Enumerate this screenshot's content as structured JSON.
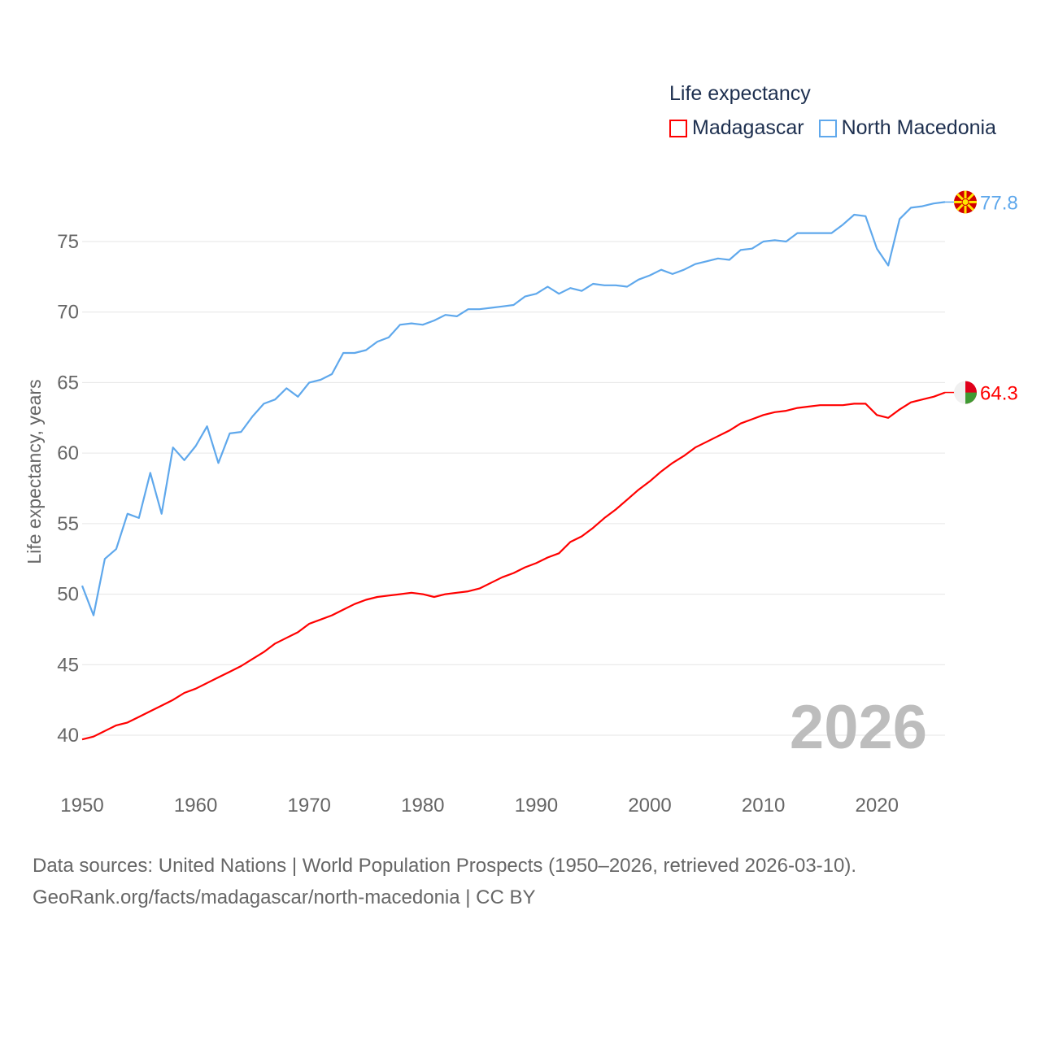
{
  "chart_data": {
    "type": "line",
    "title": "",
    "xlabel": "",
    "ylabel": "Life expectancy, years",
    "xlim": [
      1950,
      2026
    ],
    "ylim": [
      38.5,
      79
    ],
    "x_ticks": [
      "1950",
      "1960",
      "1970",
      "1980",
      "1990",
      "2000",
      "2010",
      "2020"
    ],
    "y_ticks": [
      "40",
      "45",
      "50",
      "55",
      "60",
      "65",
      "70",
      "75"
    ],
    "grid": true,
    "legend_title": "Life expectancy",
    "legend_position": "top-right",
    "year_label": "2026",
    "x": [
      1950,
      1951,
      1952,
      1953,
      1954,
      1955,
      1956,
      1957,
      1958,
      1959,
      1960,
      1961,
      1962,
      1963,
      1964,
      1965,
      1966,
      1967,
      1968,
      1969,
      1970,
      1971,
      1972,
      1973,
      1974,
      1975,
      1976,
      1977,
      1978,
      1979,
      1980,
      1981,
      1982,
      1983,
      1984,
      1985,
      1986,
      1987,
      1988,
      1989,
      1990,
      1991,
      1992,
      1993,
      1994,
      1995,
      1996,
      1997,
      1998,
      1999,
      2000,
      2001,
      2002,
      2003,
      2004,
      2005,
      2006,
      2007,
      2008,
      2009,
      2010,
      2011,
      2012,
      2013,
      2014,
      2015,
      2016,
      2017,
      2018,
      2019,
      2020,
      2021,
      2022,
      2023,
      2024,
      2025,
      2026
    ],
    "series": [
      {
        "name": "Madagascar",
        "color": "#ff0000",
        "end_label": "64.3",
        "values": [
          39.7,
          39.9,
          40.3,
          40.7,
          40.9,
          41.3,
          41.7,
          42.1,
          42.5,
          43.0,
          43.3,
          43.7,
          44.1,
          44.5,
          44.9,
          45.4,
          45.9,
          46.5,
          46.9,
          47.3,
          47.9,
          48.2,
          48.5,
          48.9,
          49.3,
          49.6,
          49.8,
          49.9,
          50.0,
          50.1,
          50.0,
          49.8,
          50.0,
          50.1,
          50.2,
          50.4,
          50.8,
          51.2,
          51.5,
          51.9,
          52.2,
          52.6,
          52.9,
          53.7,
          54.1,
          54.7,
          55.4,
          56.0,
          56.7,
          57.4,
          58.0,
          58.7,
          59.3,
          59.8,
          60.4,
          60.8,
          61.2,
          61.6,
          62.1,
          62.4,
          62.7,
          62.9,
          63.0,
          63.2,
          63.3,
          63.4,
          63.4,
          63.4,
          63.5,
          63.5,
          62.7,
          62.5,
          63.1,
          63.6,
          63.8,
          64.0,
          64.3
        ]
      },
      {
        "name": "North Macedonia",
        "color": "#5fa8ec",
        "end_label": "77.8",
        "values": [
          50.6,
          48.5,
          52.5,
          53.2,
          55.7,
          55.4,
          58.6,
          55.7,
          60.4,
          59.5,
          60.5,
          61.9,
          59.3,
          61.4,
          61.5,
          62.6,
          63.5,
          63.8,
          64.6,
          64.0,
          65.0,
          65.2,
          65.6,
          67.1,
          67.1,
          67.3,
          67.9,
          68.2,
          69.1,
          69.2,
          69.1,
          69.4,
          69.8,
          69.7,
          70.2,
          70.2,
          70.3,
          70.4,
          70.5,
          71.1,
          71.3,
          71.8,
          71.3,
          71.7,
          71.5,
          72.0,
          71.9,
          71.9,
          71.8,
          72.3,
          72.6,
          73.0,
          72.7,
          73.0,
          73.4,
          73.6,
          73.8,
          73.7,
          74.4,
          74.5,
          75.0,
          75.1,
          75.0,
          75.6,
          75.6,
          75.6,
          75.6,
          76.2,
          76.9,
          76.8,
          74.5,
          73.3,
          76.6,
          77.4,
          77.5,
          77.7,
          77.8
        ]
      }
    ]
  },
  "footer": {
    "line1": "Data sources: United Nations | World Population Prospects (1950–2026, retrieved 2026-03-10).",
    "line2": "GeoRank.org/facts/madagascar/north-macedonia | CC BY"
  }
}
